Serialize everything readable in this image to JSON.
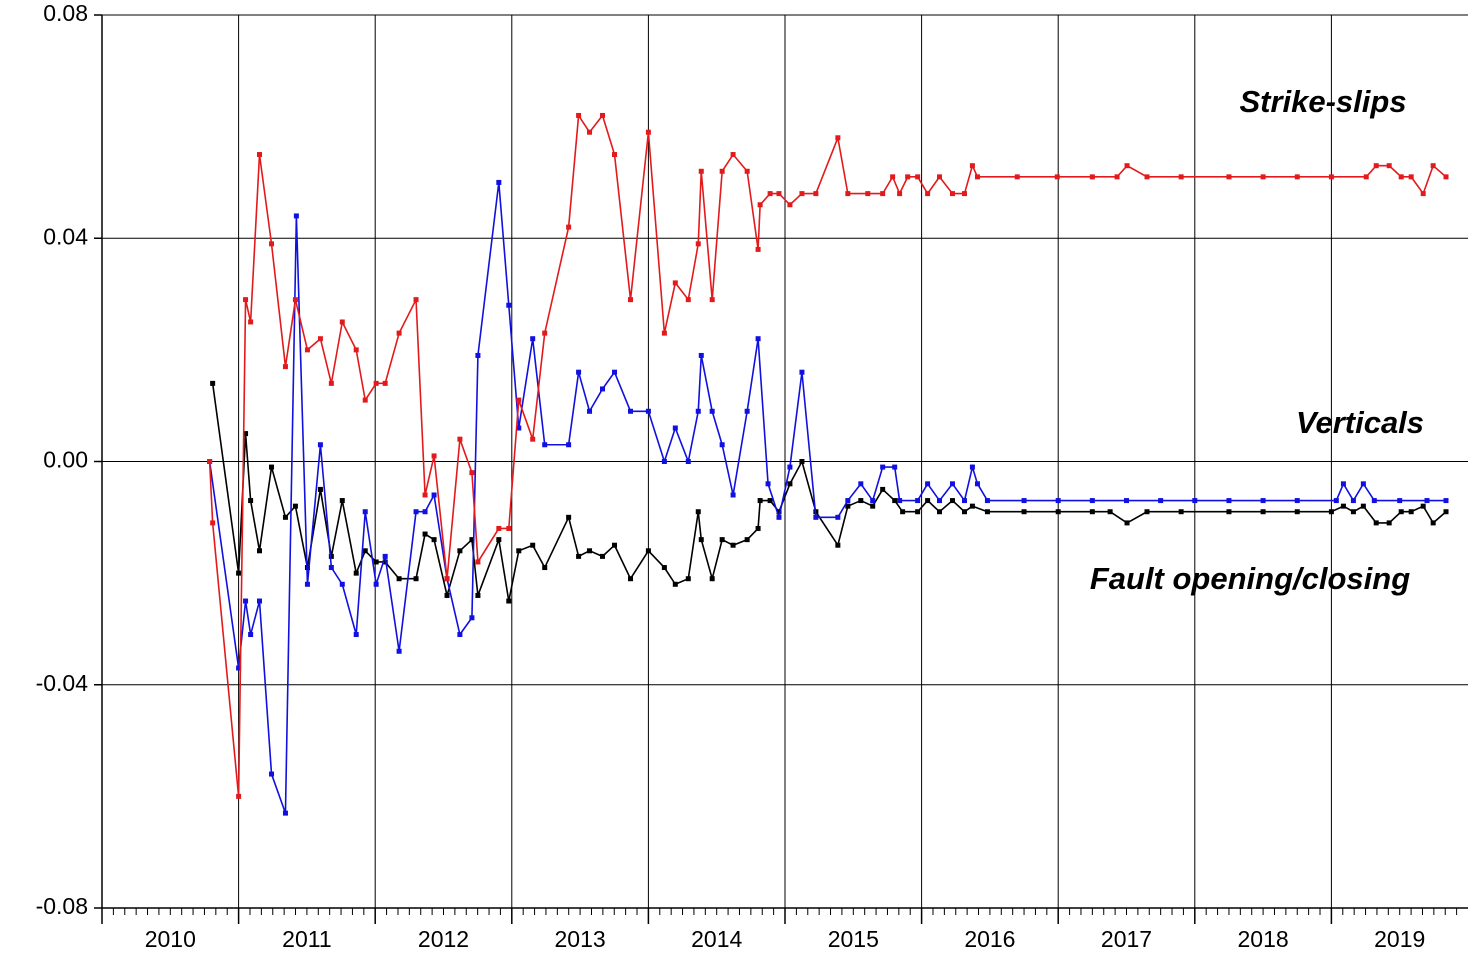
{
  "chart_data": {
    "type": "line",
    "xlim": [
      2010,
      2020
    ],
    "xticks": [
      {
        "value": 2010,
        "label": "2010"
      },
      {
        "value": 2011,
        "label": "2011"
      },
      {
        "value": 2012,
        "label": "2012"
      },
      {
        "value": 2013,
        "label": "2013"
      },
      {
        "value": 2014,
        "label": "2014"
      },
      {
        "value": 2015,
        "label": "2015"
      },
      {
        "value": 2016,
        "label": "2016"
      },
      {
        "value": 2017,
        "label": "2017"
      },
      {
        "value": 2018,
        "label": "2018"
      },
      {
        "value": 2019,
        "label": "2019"
      }
    ],
    "ylim": [
      -0.08,
      0.08
    ],
    "yticks": [
      -0.08,
      -0.04,
      {
        "value": 0,
        "label": "0.00"
      },
      0.04,
      0.08
    ],
    "grid": true,
    "annotations": [
      {
        "text": "Strike-slips",
        "color": "#e31a1c"
      },
      {
        "text": "Verticals",
        "color": "#1010e0"
      },
      {
        "text": "Fault opening/closing",
        "color": "#000000"
      }
    ],
    "series": [
      {
        "name": "Fault opening/closing",
        "color": "#000000",
        "x": [
          2010.81,
          2011.0,
          2011.051,
          2011.088,
          2011.153,
          2011.241,
          2011.343,
          2011.416,
          2011.504,
          2011.599,
          2011.679,
          2011.759,
          2011.861,
          2011.927,
          2012.007,
          2012.073,
          2012.175,
          2012.299,
          2012.365,
          2012.431,
          2012.526,
          2012.62,
          2012.708,
          2012.752,
          2012.905,
          2012.978,
          2013.051,
          2013.153,
          2013.241,
          2013.416,
          2013.489,
          2013.569,
          2013.664,
          2013.752,
          2013.869,
          2014.0,
          2014.117,
          2014.197,
          2014.292,
          2014.365,
          2014.387,
          2014.467,
          2014.54,
          2014.62,
          2014.723,
          2014.803,
          2014.818,
          2014.891,
          2014.956,
          2015.036,
          2015.124,
          2015.226,
          2015.387,
          2015.46,
          2015.555,
          2015.642,
          2015.715,
          2015.803,
          2015.861,
          2015.971,
          2016.044,
          2016.131,
          2016.226,
          2016.314,
          2016.372,
          2016.482,
          2016.75,
          2017.0,
          2017.25,
          2017.38,
          2017.504,
          2017.65,
          2017.9,
          2018.25,
          2018.5,
          2018.75,
          2019.0,
          2019.088,
          2019.161,
          2019.234,
          2019.328,
          2019.423,
          2019.511,
          2019.584,
          2019.672,
          2019.745,
          2019.839
        ],
        "values": [
          0.014,
          -0.02,
          0.005,
          -0.007,
          -0.016,
          -0.001,
          -0.01,
          -0.008,
          -0.019,
          -0.005,
          -0.017,
          -0.007,
          -0.02,
          -0.016,
          -0.018,
          -0.018,
          -0.021,
          -0.021,
          -0.013,
          -0.014,
          -0.024,
          -0.016,
          -0.014,
          -0.024,
          -0.014,
          -0.025,
          -0.016,
          -0.015,
          -0.019,
          -0.01,
          -0.017,
          -0.016,
          -0.017,
          -0.015,
          -0.021,
          -0.016,
          -0.019,
          -0.022,
          -0.021,
          -0.009,
          -0.014,
          -0.021,
          -0.014,
          -0.015,
          -0.014,
          -0.012,
          -0.007,
          -0.007,
          -0.009,
          -0.004,
          0.0,
          -0.009,
          -0.015,
          -0.008,
          -0.007,
          -0.008,
          -0.005,
          -0.007,
          -0.009,
          -0.009,
          -0.007,
          -0.009,
          -0.007,
          -0.009,
          -0.008,
          -0.009,
          -0.009,
          -0.009,
          -0.009,
          -0.009,
          -0.011,
          -0.009,
          -0.009,
          -0.009,
          -0.009,
          -0.009,
          -0.009,
          -0.008,
          -0.009,
          -0.008,
          -0.011,
          -0.011,
          -0.009,
          -0.009,
          -0.008,
          -0.011,
          -0.009
        ]
      },
      {
        "name": "Verticals",
        "color": "#1010e0",
        "x": [
          2010.788,
          2011.0,
          2011.051,
          2011.088,
          2011.153,
          2011.241,
          2011.343,
          2011.423,
          2011.504,
          2011.599,
          2011.679,
          2011.759,
          2011.861,
          2011.927,
          2012.007,
          2012.073,
          2012.175,
          2012.299,
          2012.365,
          2012.431,
          2012.526,
          2012.62,
          2012.708,
          2012.752,
          2012.905,
          2012.978,
          2013.051,
          2013.153,
          2013.241,
          2013.416,
          2013.489,
          2013.569,
          2013.664,
          2013.752,
          2013.869,
          2014.0,
          2014.117,
          2014.197,
          2014.292,
          2014.365,
          2014.387,
          2014.467,
          2014.54,
          2014.62,
          2014.723,
          2014.803,
          2014.876,
          2014.956,
          2015.036,
          2015.124,
          2015.226,
          2015.387,
          2015.46,
          2015.555,
          2015.642,
          2015.715,
          2015.803,
          2015.839,
          2015.971,
          2016.044,
          2016.131,
          2016.226,
          2016.314,
          2016.372,
          2016.409,
          2016.482,
          2016.75,
          2017.0,
          2017.25,
          2017.5,
          2017.75,
          2018.0,
          2018.25,
          2018.5,
          2018.75,
          2019.036,
          2019.088,
          2019.161,
          2019.234,
          2019.314,
          2019.5,
          2019.7,
          2019.839
        ],
        "values": [
          0.0,
          -0.037,
          -0.025,
          -0.031,
          -0.025,
          -0.056,
          -0.063,
          0.044,
          -0.022,
          0.003,
          -0.019,
          -0.022,
          -0.031,
          -0.009,
          -0.022,
          -0.017,
          -0.034,
          -0.009,
          -0.009,
          -0.006,
          -0.021,
          -0.031,
          -0.028,
          0.019,
          0.05,
          0.028,
          0.006,
          0.022,
          0.003,
          0.003,
          0.016,
          0.009,
          0.013,
          0.016,
          0.009,
          0.009,
          0.0,
          0.006,
          0.0,
          0.009,
          0.019,
          0.009,
          0.003,
          -0.006,
          0.009,
          0.022,
          -0.004,
          -0.01,
          -0.001,
          0.016,
          -0.01,
          -0.01,
          -0.007,
          -0.004,
          -0.007,
          -0.001,
          -0.001,
          -0.007,
          -0.007,
          -0.004,
          -0.007,
          -0.004,
          -0.007,
          -0.001,
          -0.004,
          -0.007,
          -0.007,
          -0.007,
          -0.007,
          -0.007,
          -0.007,
          -0.007,
          -0.007,
          -0.007,
          -0.007,
          -0.007,
          -0.004,
          -0.007,
          -0.004,
          -0.007,
          -0.007,
          -0.007,
          -0.007
        ]
      },
      {
        "name": "Strike-slips",
        "color": "#e31a1c",
        "x": [
          2010.788,
          2010.81,
          2011.0,
          2011.051,
          2011.088,
          2011.153,
          2011.241,
          2011.343,
          2011.416,
          2011.504,
          2011.599,
          2011.679,
          2011.759,
          2011.861,
          2011.927,
          2012.007,
          2012.073,
          2012.175,
          2012.299,
          2012.365,
          2012.431,
          2012.526,
          2012.62,
          2012.708,
          2012.752,
          2012.905,
          2012.978,
          2013.051,
          2013.153,
          2013.241,
          2013.416,
          2013.489,
          2013.569,
          2013.664,
          2013.752,
          2013.869,
          2014.0,
          2014.117,
          2014.197,
          2014.292,
          2014.365,
          2014.387,
          2014.467,
          2014.54,
          2014.62,
          2014.723,
          2014.803,
          2014.818,
          2014.891,
          2014.956,
          2015.036,
          2015.124,
          2015.226,
          2015.387,
          2015.46,
          2015.606,
          2015.715,
          2015.788,
          2015.839,
          2015.898,
          2015.971,
          2016.044,
          2016.131,
          2016.226,
          2016.314,
          2016.372,
          2016.409,
          2016.7,
          2016.993,
          2017.25,
          2017.431,
          2017.504,
          2017.65,
          2017.9,
          2018.25,
          2018.5,
          2018.75,
          2019.0,
          2019.255,
          2019.328,
          2019.423,
          2019.511,
          2019.584,
          2019.672,
          2019.745,
          2019.839
        ],
        "values": [
          0.0,
          -0.011,
          -0.06,
          0.029,
          0.025,
          0.055,
          0.039,
          0.017,
          0.029,
          0.02,
          0.022,
          0.014,
          0.025,
          0.02,
          0.011,
          0.014,
          0.014,
          0.023,
          0.029,
          -0.006,
          0.001,
          -0.021,
          0.004,
          -0.002,
          -0.018,
          -0.012,
          -0.012,
          0.011,
          0.004,
          0.023,
          0.042,
          0.062,
          0.059,
          0.062,
          0.055,
          0.029,
          0.059,
          0.023,
          0.032,
          0.029,
          0.039,
          0.052,
          0.029,
          0.052,
          0.055,
          0.052,
          0.038,
          0.046,
          0.048,
          0.048,
          0.046,
          0.048,
          0.048,
          0.058,
          0.048,
          0.048,
          0.048,
          0.051,
          0.048,
          0.051,
          0.051,
          0.048,
          0.051,
          0.048,
          0.048,
          0.053,
          0.051,
          0.051,
          0.051,
          0.051,
          0.051,
          0.053,
          0.051,
          0.051,
          0.051,
          0.051,
          0.051,
          0.051,
          0.051,
          0.053,
          0.053,
          0.051,
          0.051,
          0.048,
          0.053,
          0.051
        ]
      }
    ]
  }
}
